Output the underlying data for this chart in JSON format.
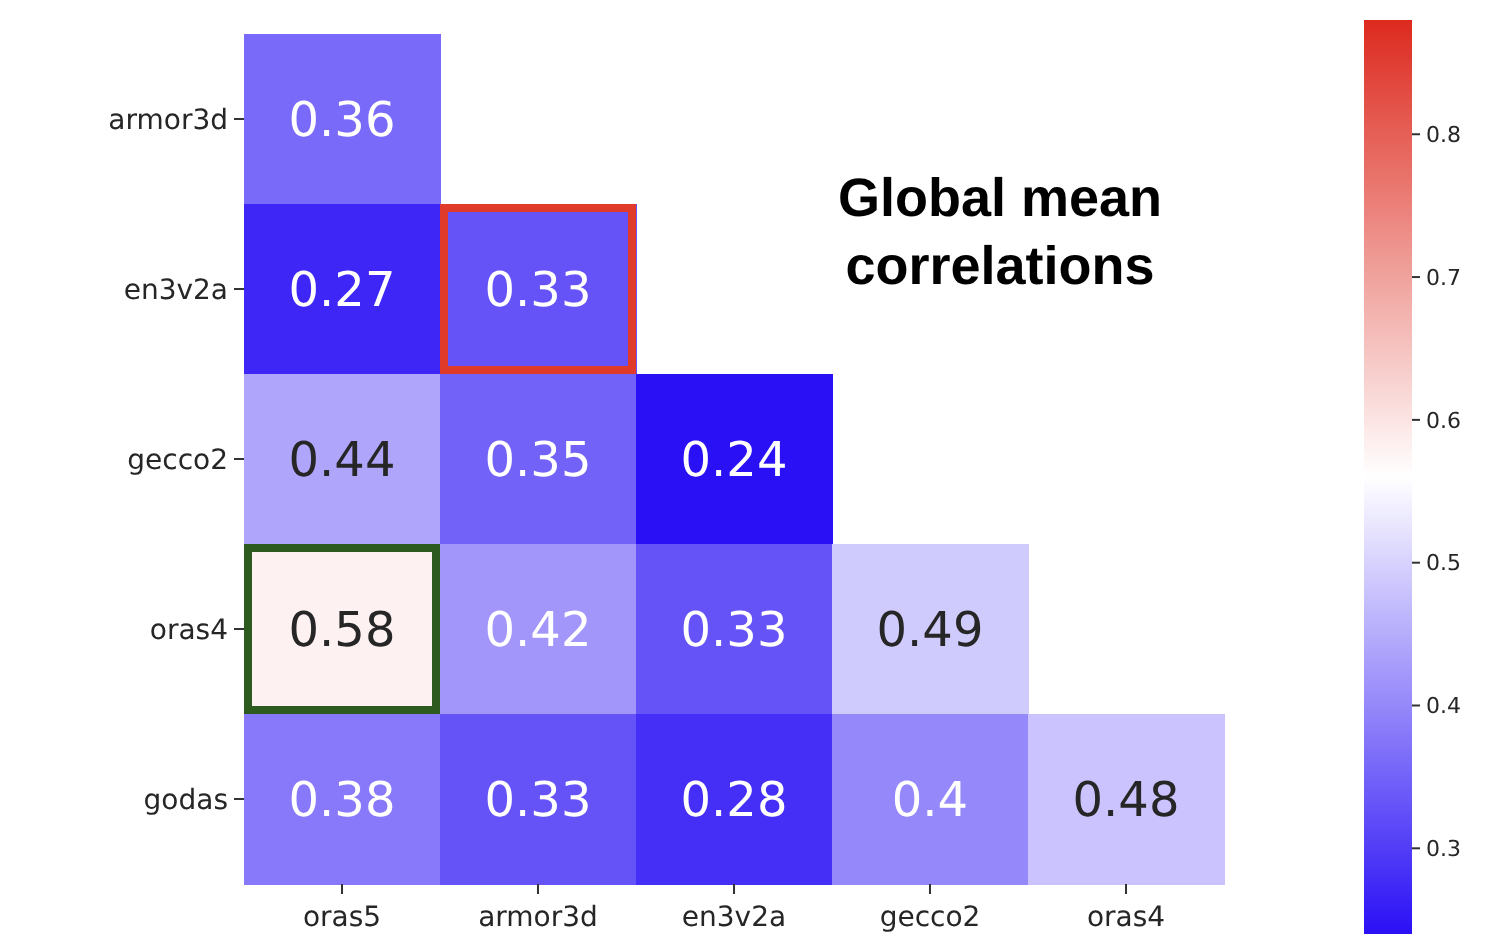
{
  "chart_data": {
    "type": "heatmap",
    "categories": [
      "oras5",
      "armor3d",
      "en3v2a",
      "gecco2",
      "oras4"
    ],
    "y_categories": [
      "armor3d",
      "en3v2a",
      "gecco2",
      "oras4",
      "godas"
    ],
    "cells": [
      [
        0.36,
        null,
        null,
        null,
        null
      ],
      [
        0.27,
        0.33,
        null,
        null,
        null
      ],
      [
        0.44,
        0.35,
        0.24,
        null,
        null
      ],
      [
        0.58,
        0.42,
        0.33,
        0.49,
        null
      ],
      [
        0.38,
        0.33,
        0.28,
        0.4,
        0.48
      ]
    ],
    "data_labels": true,
    "clim": [
      0.24,
      0.88
    ],
    "cticks": [
      0.3,
      0.4,
      0.5,
      0.6,
      0.7,
      0.8
    ],
    "annotations": [
      "Global mean correlations"
    ]
  }
}
